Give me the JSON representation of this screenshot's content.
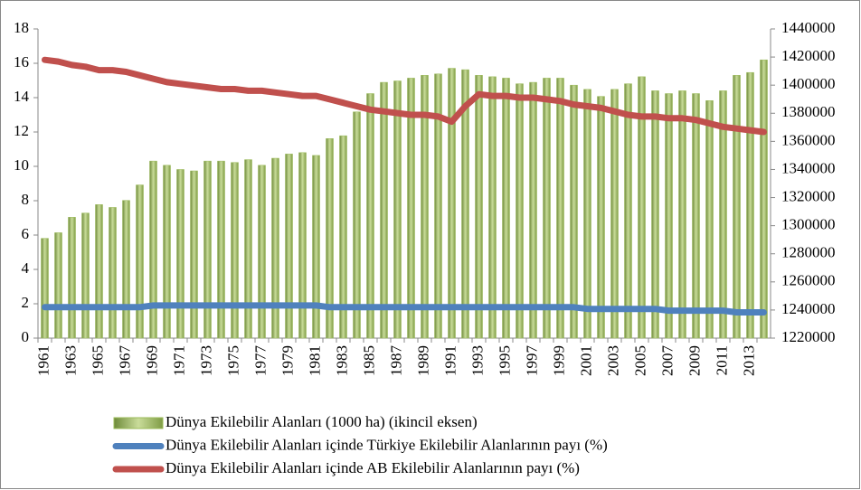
{
  "chart_data": {
    "type": "bar",
    "categories": [
      "1961",
      null,
      "1963",
      null,
      "1965",
      null,
      "1967",
      null,
      "1969",
      null,
      "1971",
      null,
      "1973",
      null,
      "1975",
      null,
      "1977",
      null,
      "1979",
      null,
      "1981",
      null,
      "1983",
      null,
      "1985",
      null,
      "1987",
      null,
      "1989",
      null,
      "1991",
      null,
      "1993",
      null,
      "1995",
      null,
      "1997",
      null,
      "1999",
      null,
      "2001",
      null,
      "2003",
      null,
      "2005",
      null,
      "2007",
      null,
      "2009",
      null,
      "2011",
      null,
      "2013",
      null
    ],
    "series": [
      {
        "name": "Dünya Ekilebilir Alanları (1000 ha) (ikincil eksen)",
        "type": "bar",
        "axis": "y2",
        "color": "#9bbb59",
        "values": [
          1291000,
          1295000,
          1306000,
          1309000,
          1315000,
          1313000,
          1318000,
          1329000,
          1346000,
          1343000,
          1340000,
          1339000,
          1346000,
          1346000,
          1345000,
          1347000,
          1343000,
          1348000,
          1351000,
          1352000,
          1350000,
          1362000,
          1364000,
          1381000,
          1394000,
          1402000,
          1403000,
          1405000,
          1407000,
          1408000,
          1412000,
          1411000,
          1407000,
          1406000,
          1405000,
          1401000,
          1402000,
          1405000,
          1405000,
          1400000,
          1397000,
          1392000,
          1397000,
          1401000,
          1406000,
          1396000,
          1394000,
          1396000,
          1394000,
          1389000,
          1396000,
          1407000,
          1409000,
          1418000
        ]
      },
      {
        "name": "Dünya Ekilebilir Alanları içinde Türkiye Ekilebilir Alanlarının payı (%)",
        "type": "line",
        "color": "#4f81bd",
        "values": [
          1.8,
          1.8,
          1.8,
          1.8,
          1.8,
          1.8,
          1.8,
          1.8,
          1.9,
          1.9,
          1.9,
          1.9,
          1.9,
          1.9,
          1.9,
          1.9,
          1.9,
          1.9,
          1.9,
          1.9,
          1.9,
          1.8,
          1.8,
          1.8,
          1.8,
          1.8,
          1.8,
          1.8,
          1.8,
          1.8,
          1.8,
          1.8,
          1.8,
          1.8,
          1.8,
          1.8,
          1.8,
          1.8,
          1.8,
          1.8,
          1.7,
          1.7,
          1.7,
          1.7,
          1.7,
          1.7,
          1.6,
          1.6,
          1.6,
          1.6,
          1.6,
          1.5,
          1.5,
          1.5
        ]
      },
      {
        "name": "Dünya Ekilebilir Alanları içinde AB Ekilebilir Alanlarının payı (%)",
        "type": "line",
        "color": "#c0504d",
        "values": [
          16.2,
          16.1,
          15.9,
          15.8,
          15.6,
          15.6,
          15.5,
          15.3,
          15.1,
          14.9,
          14.8,
          14.7,
          14.6,
          14.5,
          14.5,
          14.4,
          14.4,
          14.3,
          14.2,
          14.1,
          14.1,
          13.9,
          13.7,
          13.5,
          13.3,
          13.2,
          13.1,
          13.0,
          13.0,
          12.9,
          12.6,
          13.5,
          14.2,
          14.1,
          14.1,
          14.0,
          14.0,
          13.9,
          13.8,
          13.6,
          13.5,
          13.4,
          13.2,
          13.0,
          12.9,
          12.9,
          12.8,
          12.8,
          12.7,
          12.5,
          12.3,
          12.2,
          12.1,
          12.0
        ]
      }
    ],
    "ylim": [
      0,
      18
    ],
    "yticks": [
      0,
      2,
      4,
      6,
      8,
      10,
      12,
      14,
      16,
      18
    ],
    "y2lim": [
      1220000,
      1440000
    ],
    "y2ticks": [
      1220000,
      1240000,
      1260000,
      1280000,
      1300000,
      1320000,
      1340000,
      1360000,
      1380000,
      1400000,
      1420000,
      1440000
    ]
  }
}
